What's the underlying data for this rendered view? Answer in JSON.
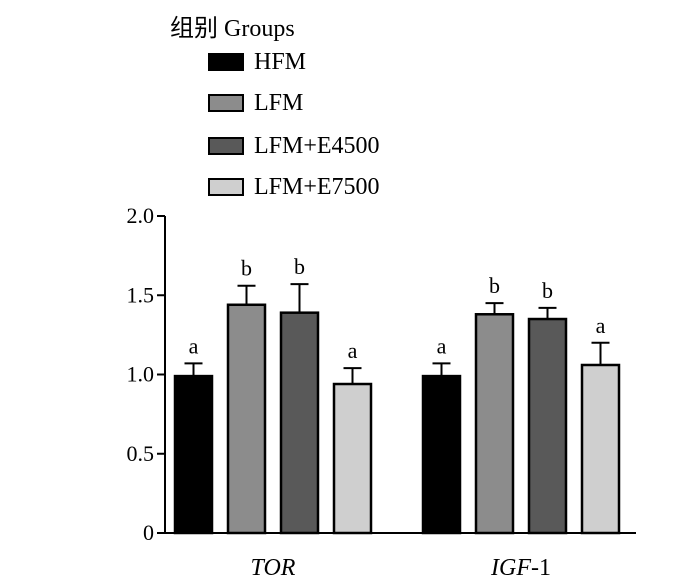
{
  "legend": {
    "title": "组别 Groups",
    "items": [
      {
        "label": "HFM",
        "color": "#000000"
      },
      {
        "label": "LFM",
        "color": "#8c8c8c"
      },
      {
        "label": "LFM+E4500",
        "color": "#595959"
      },
      {
        "label": "LFM+E7500",
        "color": "#cfcfcf"
      }
    ]
  },
  "chart_data": {
    "type": "bar",
    "title": "",
    "xlabel": "",
    "ylabel": "",
    "ylim": [
      0,
      2.0
    ],
    "yticks": [
      0,
      0.5,
      1.0,
      1.5,
      2.0
    ],
    "ytick_labels": [
      "0",
      "0.5",
      "1.0",
      "1.5",
      "2.0"
    ],
    "grid": false,
    "legend_position": "top",
    "categories": [
      {
        "label": "TOR",
        "italic_part": "TOR",
        "suffix": ""
      },
      {
        "label": "IGF-1",
        "italic_part": "IGF",
        "suffix": "-1"
      }
    ],
    "series": [
      {
        "name": "HFM",
        "color": "#000000",
        "values": [
          0.99,
          0.99
        ],
        "errors": [
          0.08,
          0.08
        ],
        "letters": [
          "a",
          "a"
        ]
      },
      {
        "name": "LFM",
        "color": "#8c8c8c",
        "values": [
          1.44,
          1.38
        ],
        "errors": [
          0.12,
          0.07
        ],
        "letters": [
          "b",
          "b"
        ]
      },
      {
        "name": "LFM+E4500",
        "color": "#595959",
        "values": [
          1.39,
          1.35
        ],
        "errors": [
          0.18,
          0.07
        ],
        "letters": [
          "b",
          "b"
        ]
      },
      {
        "name": "LFM+E7500",
        "color": "#cfcfcf",
        "values": [
          0.94,
          1.06
        ],
        "errors": [
          0.1,
          0.14
        ],
        "letters": [
          "a",
          "a"
        ]
      }
    ]
  }
}
